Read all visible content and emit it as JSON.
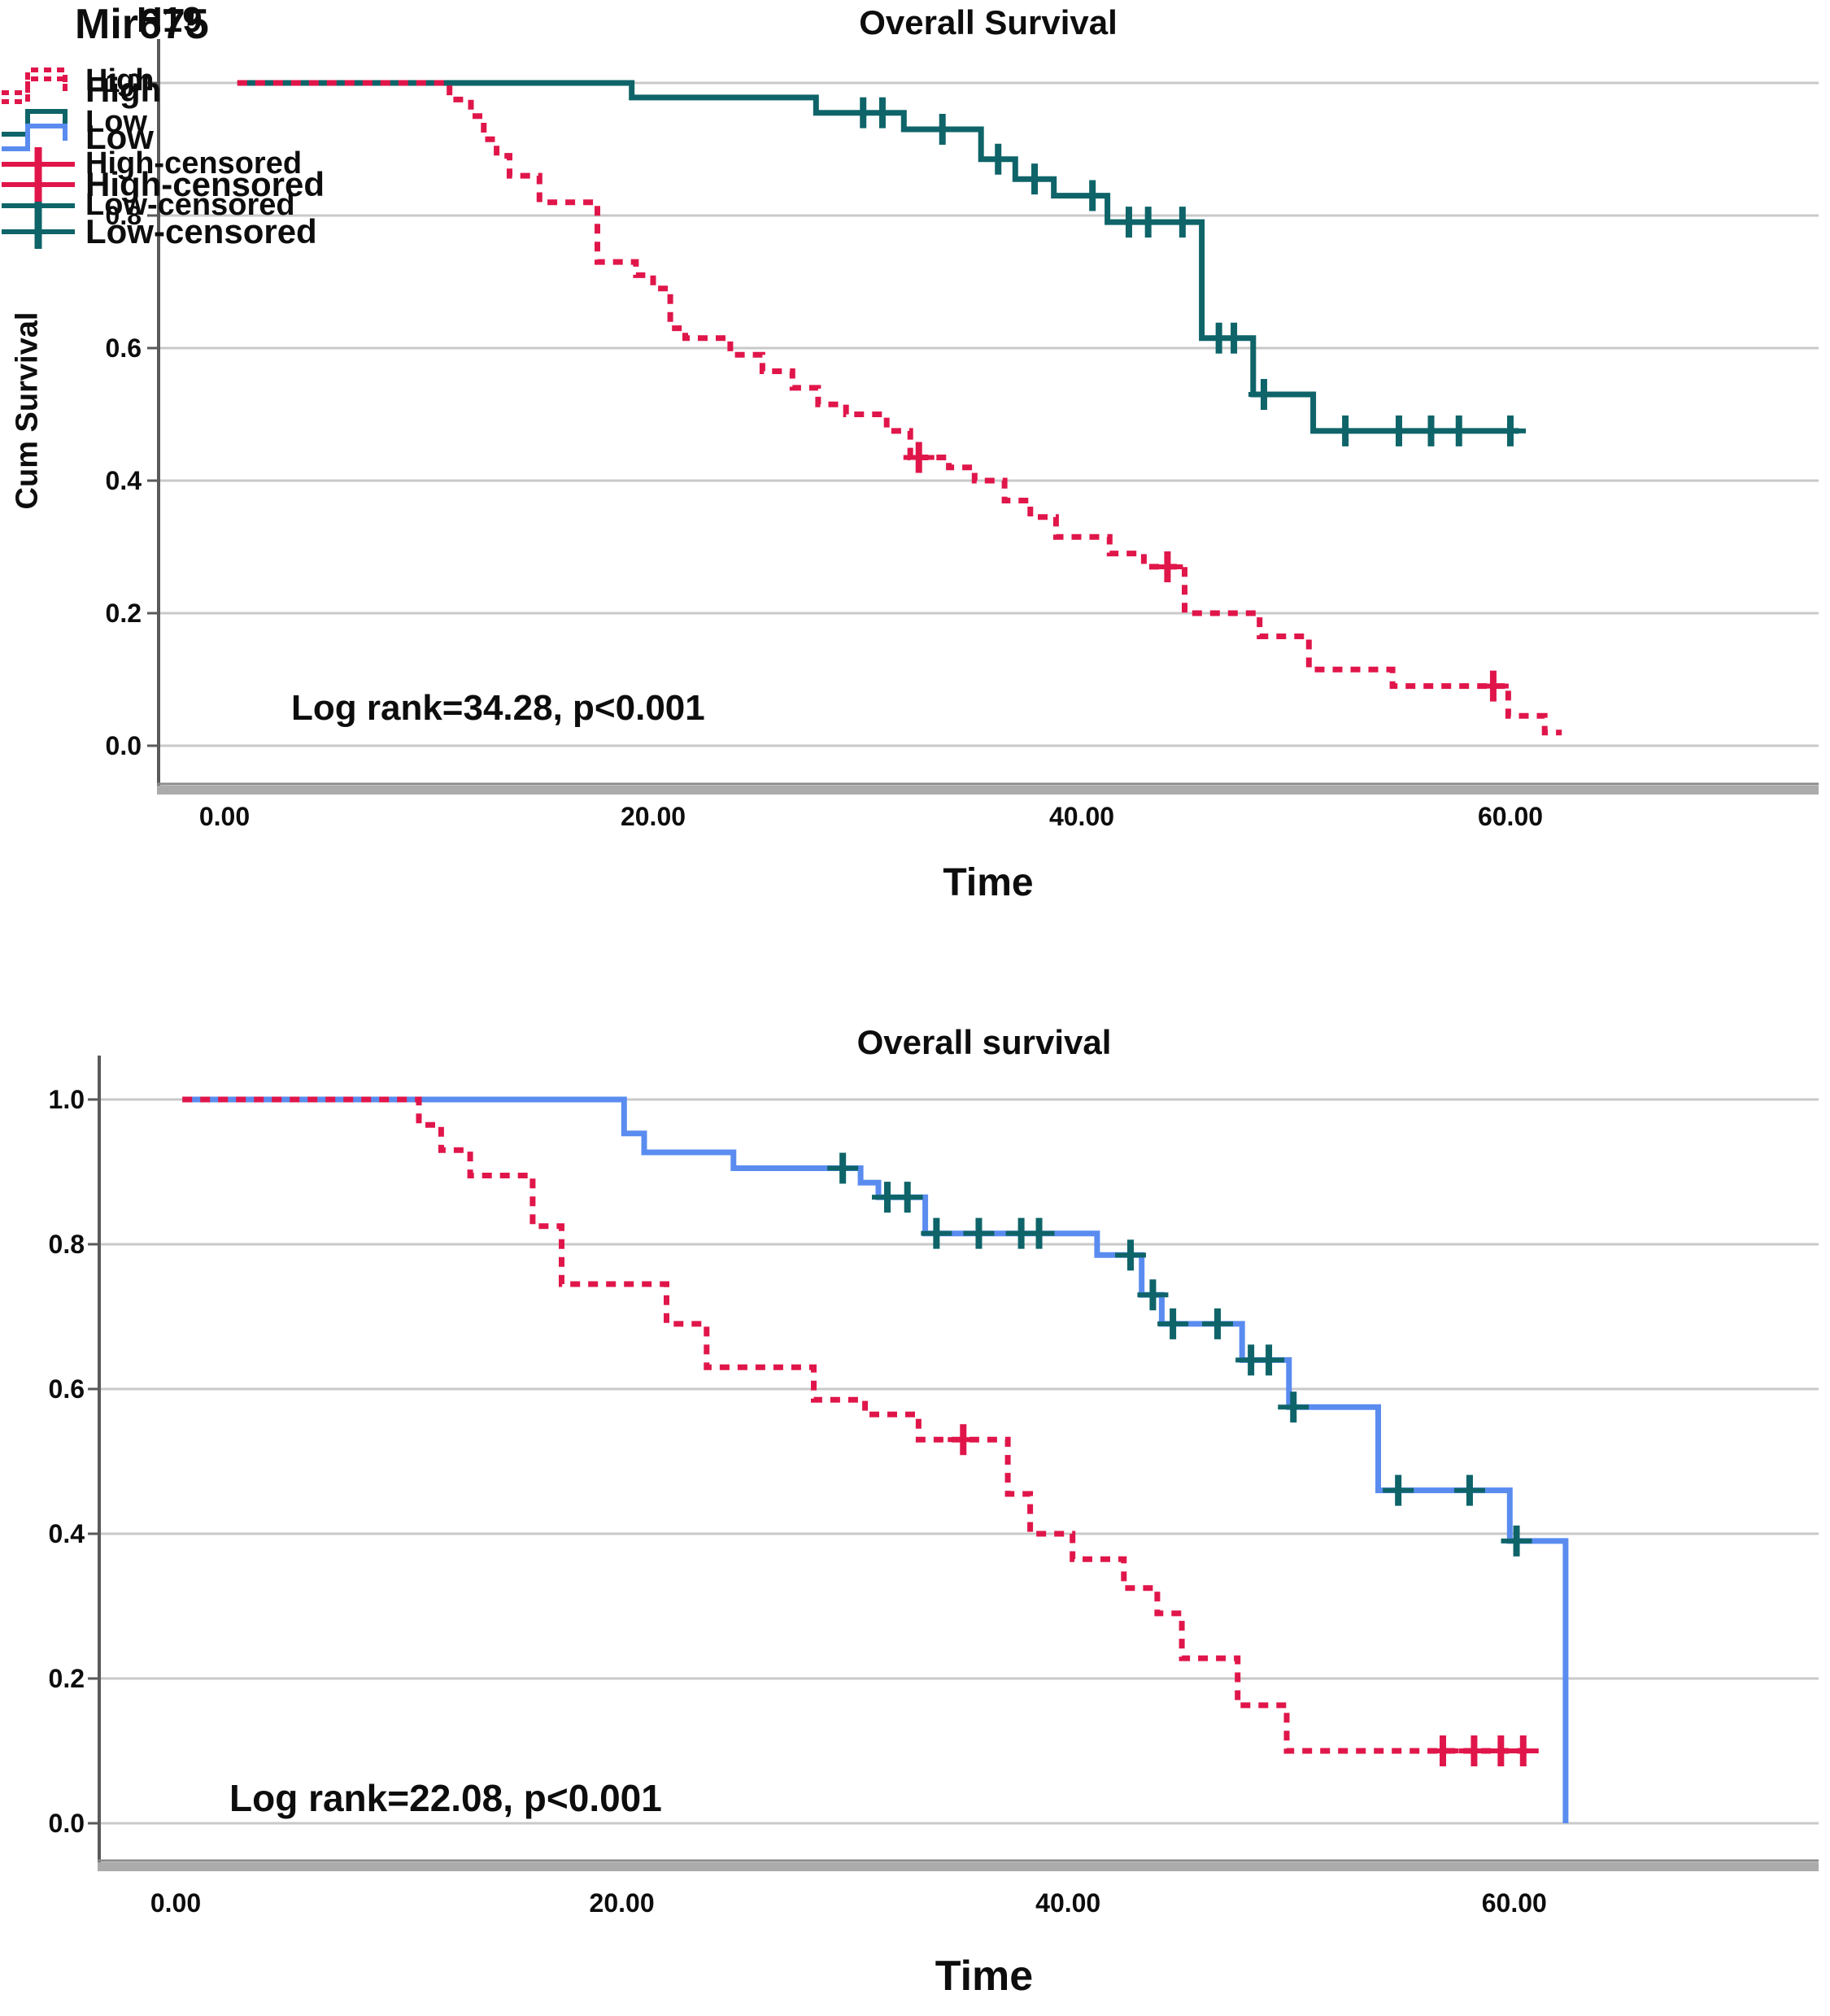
{
  "colors": {
    "high": "#e0164a",
    "low_top": "#0e6468",
    "low_bottom": "#5a8cf0",
    "censor_low": "#0e6468",
    "grid": "#c9c9c9",
    "axis": "#5a5a5a",
    "axis_band": "#ababab",
    "text": "#0d0d0d",
    "background": "#ffffff"
  },
  "chart_data": [
    {
      "type": "line",
      "subtype": "kaplan-meier-step",
      "title": "Overall Survival",
      "xlabel": "Time",
      "ylabel": "Cum Survival",
      "legend_title": "H19",
      "annotation": "Log rank=34.28, p<0.001",
      "grid": true,
      "legend_position": "left-middle",
      "x_axis": {
        "range": [
          0,
          74
        ],
        "ticks": [
          {
            "t": 0,
            "label": "0.00"
          },
          {
            "t": 20,
            "label": "20.00"
          },
          {
            "t": 40,
            "label": "40.00"
          },
          {
            "t": 60,
            "label": "60.00"
          }
        ]
      },
      "y_axis": {
        "range": [
          0,
          1
        ],
        "ticks": [
          {
            "v": 1.0,
            "label": "1.0"
          },
          {
            "v": 0.8,
            "label": "0.8"
          },
          {
            "v": 0.6,
            "label": "0.6"
          },
          {
            "v": 0.4,
            "label": "0.4"
          },
          {
            "v": 0.2,
            "label": "0.2"
          },
          {
            "v": 0.0,
            "label": "0.0"
          }
        ]
      },
      "series": [
        {
          "name": "Low",
          "color": "#0e6468",
          "line_style": "solid",
          "end_time": 60.4,
          "steps": [
            [
              0.6,
              1.0
            ],
            [
              19.0,
              0.978
            ],
            [
              27.6,
              0.955
            ],
            [
              31.7,
              0.93
            ],
            [
              35.3,
              0.885
            ],
            [
              36.9,
              0.855
            ],
            [
              38.7,
              0.83
            ],
            [
              41.2,
              0.79
            ],
            [
              45.6,
              0.615
            ],
            [
              48.0,
              0.53
            ],
            [
              50.8,
              0.475
            ]
          ],
          "censors": [
            [
              29.8,
              0.955
            ],
            [
              30.7,
              0.955
            ],
            [
              33.5,
              0.93
            ],
            [
              36.1,
              0.885
            ],
            [
              37.8,
              0.855
            ],
            [
              40.5,
              0.83
            ],
            [
              42.2,
              0.79
            ],
            [
              43.1,
              0.79
            ],
            [
              44.7,
              0.79
            ],
            [
              46.4,
              0.615
            ],
            [
              47.1,
              0.615
            ],
            [
              48.5,
              0.53
            ],
            [
              52.3,
              0.475
            ],
            [
              54.8,
              0.475
            ],
            [
              56.3,
              0.475
            ],
            [
              57.6,
              0.475
            ],
            [
              60.0,
              0.475
            ]
          ],
          "censor_color": "#0e6468"
        },
        {
          "name": "High",
          "color": "#e0164a",
          "line_style": "dashed",
          "end_time": 62.4,
          "steps": [
            [
              0.6,
              1.0
            ],
            [
              10.5,
              0.975
            ],
            [
              11.5,
              0.95
            ],
            [
              12.1,
              0.915
            ],
            [
              12.7,
              0.89
            ],
            [
              13.3,
              0.86
            ],
            [
              14.7,
              0.82
            ],
            [
              17.4,
              0.73
            ],
            [
              19.2,
              0.71
            ],
            [
              20.0,
              0.69
            ],
            [
              20.8,
              0.63
            ],
            [
              21.5,
              0.615
            ],
            [
              23.6,
              0.59
            ],
            [
              25.1,
              0.565
            ],
            [
              26.5,
              0.54
            ],
            [
              27.7,
              0.515
            ],
            [
              29.0,
              0.5
            ],
            [
              30.9,
              0.475
            ],
            [
              32.0,
              0.435
            ],
            [
              33.8,
              0.42
            ],
            [
              35.0,
              0.4
            ],
            [
              36.4,
              0.37
            ],
            [
              37.6,
              0.345
            ],
            [
              38.8,
              0.315
            ],
            [
              41.3,
              0.29
            ],
            [
              42.9,
              0.27
            ],
            [
              44.8,
              0.2
            ],
            [
              48.3,
              0.165
            ],
            [
              50.6,
              0.115
            ],
            [
              54.5,
              0.09
            ],
            [
              59.9,
              0.045
            ],
            [
              61.6,
              0.02
            ]
          ],
          "censors": [
            [
              32.4,
              0.435
            ],
            [
              44.0,
              0.27
            ],
            [
              59.2,
              0.09
            ]
          ],
          "censor_color": "#e0164a"
        }
      ],
      "legend": [
        {
          "label": "High",
          "symbol": "dashed-step",
          "color": "#e0164a"
        },
        {
          "label": "Low",
          "symbol": "solid-step",
          "color": "#0e6468"
        },
        {
          "label": "High-censored",
          "symbol": "censor",
          "color": "#e0164a"
        },
        {
          "label": "Low-censored",
          "symbol": "censor",
          "color": "#0e6468"
        }
      ]
    },
    {
      "type": "line",
      "subtype": "kaplan-meier-step",
      "title": "Overall survival",
      "xlabel": "Time",
      "ylabel": "",
      "legend_title": "Mir675",
      "annotation": "Log rank=22.08, p<0.001",
      "grid": true,
      "legend_position": "left-middle",
      "x_axis": {
        "range": [
          0,
          74
        ],
        "ticks": [
          {
            "t": 0,
            "label": "0.00"
          },
          {
            "t": 20,
            "label": "20.00"
          },
          {
            "t": 40,
            "label": "40.00"
          },
          {
            "t": 60,
            "label": "60.00"
          }
        ]
      },
      "y_axis": {
        "range": [
          0,
          1
        ],
        "ticks": [
          {
            "v": 1.0,
            "label": "1.0"
          },
          {
            "v": 0.8,
            "label": "0.8"
          },
          {
            "v": 0.6,
            "label": "0.6"
          },
          {
            "v": 0.4,
            "label": "0.4"
          },
          {
            "v": 0.2,
            "label": "0.2"
          },
          {
            "v": 0.0,
            "label": "0.0"
          }
        ]
      },
      "series": [
        {
          "name": "Low",
          "color": "#5a8cf0",
          "line_style": "solid",
          "end_time": 62.3,
          "steps": [
            [
              0.3,
              1.0
            ],
            [
              20.1,
              0.953
            ],
            [
              21.0,
              0.927
            ],
            [
              25.0,
              0.905
            ],
            [
              30.7,
              0.885
            ],
            [
              31.5,
              0.865
            ],
            [
              33.6,
              0.815
            ],
            [
              41.3,
              0.785
            ],
            [
              43.3,
              0.73
            ],
            [
              44.2,
              0.69
            ],
            [
              47.8,
              0.64
            ],
            [
              49.9,
              0.575
            ],
            [
              53.9,
              0.46
            ],
            [
              59.8,
              0.39
            ],
            [
              62.3,
              0.0
            ]
          ],
          "censors": [
            [
              29.9,
              0.905
            ],
            [
              31.9,
              0.865
            ],
            [
              32.8,
              0.865
            ],
            [
              34.1,
              0.815
            ],
            [
              36.0,
              0.815
            ],
            [
              37.9,
              0.815
            ],
            [
              38.7,
              0.815
            ],
            [
              42.8,
              0.785
            ],
            [
              43.8,
              0.73
            ],
            [
              44.7,
              0.69
            ],
            [
              46.7,
              0.69
            ],
            [
              48.2,
              0.64
            ],
            [
              49.0,
              0.64
            ],
            [
              50.1,
              0.575
            ],
            [
              54.8,
              0.46
            ],
            [
              58.0,
              0.46
            ],
            [
              60.1,
              0.39
            ]
          ],
          "censor_color": "#0e6468"
        },
        {
          "name": "High",
          "color": "#e0164a",
          "line_style": "dashed",
          "end_time": 60.8,
          "steps": [
            [
              0.3,
              1.0
            ],
            [
              10.9,
              0.965
            ],
            [
              11.9,
              0.93
            ],
            [
              13.2,
              0.895
            ],
            [
              16.0,
              0.825
            ],
            [
              17.3,
              0.745
            ],
            [
              22.0,
              0.69
            ],
            [
              23.8,
              0.63
            ],
            [
              28.6,
              0.585
            ],
            [
              30.9,
              0.565
            ],
            [
              33.3,
              0.53
            ],
            [
              37.3,
              0.455
            ],
            [
              38.3,
              0.4
            ],
            [
              40.2,
              0.365
            ],
            [
              42.5,
              0.325
            ],
            [
              44.0,
              0.29
            ],
            [
              45.1,
              0.228
            ],
            [
              47.6,
              0.163
            ],
            [
              49.8,
              0.1
            ]
          ],
          "censors": [
            [
              35.3,
              0.53
            ],
            [
              56.8,
              0.1
            ],
            [
              58.2,
              0.1
            ],
            [
              59.4,
              0.1
            ],
            [
              60.4,
              0.1
            ]
          ],
          "censor_color": "#e0164a"
        }
      ],
      "legend": [
        {
          "label": "High",
          "symbol": "dashed-step",
          "color": "#e0164a"
        },
        {
          "label": "Low",
          "symbol": "solid-step",
          "color": "#5a8cf0"
        },
        {
          "label": "High-censored",
          "symbol": "censor",
          "color": "#e0164a"
        },
        {
          "label": "Low-censored",
          "symbol": "censor",
          "color": "#0e6468"
        }
      ]
    }
  ]
}
